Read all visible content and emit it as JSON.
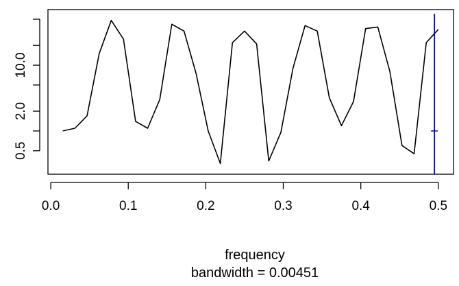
{
  "chart_data": {
    "type": "line",
    "title": "",
    "xlabel": "frequency",
    "sublabel": "bandwidth = 0.00451",
    "ylabel": "",
    "y_scale": "log",
    "x_ticks": [
      "0.0",
      "0.1",
      "0.2",
      "0.3",
      "0.4",
      "0.5"
    ],
    "y_ticks": [
      "0.5",
      "2.0",
      "10.0"
    ],
    "xlim": [
      0.0,
      0.5
    ],
    "ylim": [
      0.3,
      55
    ],
    "grid": false,
    "legend": "none",
    "series": [
      {
        "color": "#000000",
        "x": [
          0.0156,
          0.0312,
          0.0469,
          0.0625,
          0.0781,
          0.0938,
          0.1094,
          0.125,
          0.1406,
          0.1562,
          0.1719,
          0.1875,
          0.2031,
          0.2188,
          0.2344,
          0.25,
          0.2656,
          0.2812,
          0.2969,
          0.3125,
          0.3281,
          0.3438,
          0.3594,
          0.375,
          0.3906,
          0.4062,
          0.4219,
          0.4375,
          0.4531,
          0.4688,
          0.4844,
          0.5
        ],
        "y": [
          1.0,
          1.1,
          1.7,
          15,
          48,
          25,
          1.4,
          1.1,
          3.0,
          42,
          33,
          7.5,
          1.0,
          0.32,
          22,
          33,
          21,
          0.35,
          0.95,
          9.0,
          40,
          33,
          3.2,
          1.2,
          2.8,
          36,
          38,
          8.0,
          0.6,
          0.45,
          22,
          35
        ]
      }
    ],
    "annotation": {
      "type": "vertical-line",
      "color": "#0000cc",
      "x": 0.495,
      "ci_center": 1.0,
      "ci_halfwidth_factor": 1.6
    }
  }
}
